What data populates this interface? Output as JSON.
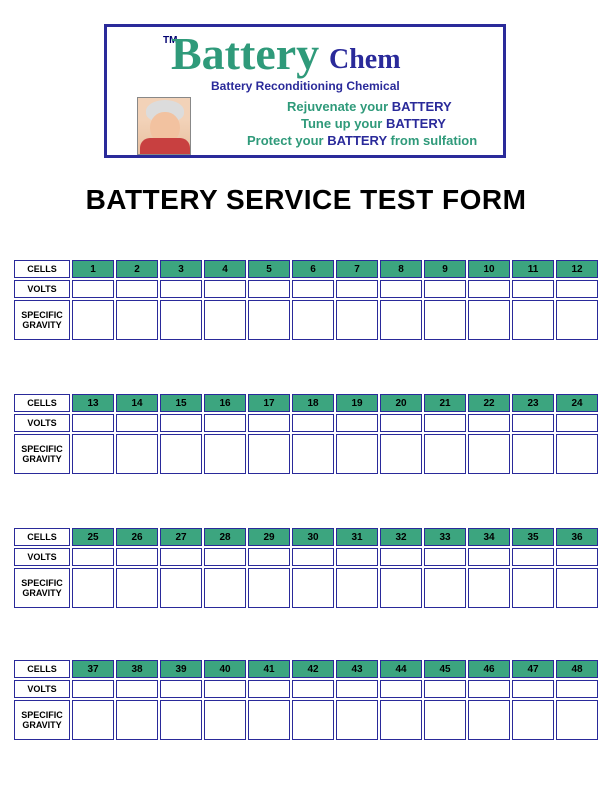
{
  "header": {
    "tm": "TM",
    "brand_main": "Battery",
    "brand_sub": "Chem",
    "subtitle": "Battery Reconditioning Chemical",
    "tag1_a": "Rejuvenate your ",
    "tag1_b": "BATTERY",
    "tag2_a": "Tune up your ",
    "tag2_b": "BATTERY",
    "tag3_a": "Protect your ",
    "tag3_b": "BATTERY",
    "tag3_c": " from sulfation"
  },
  "title": "BATTERY SERVICE TEST FORM",
  "row_labels": {
    "cells": "CELLS",
    "volts": "VOLTS",
    "sg_line1": "SPECIFIC",
    "sg_line2": "GRAVITY"
  },
  "tables": [
    {
      "cells": [
        "1",
        "2",
        "3",
        "4",
        "5",
        "6",
        "7",
        "8",
        "9",
        "10",
        "11",
        "12"
      ]
    },
    {
      "cells": [
        "13",
        "14",
        "15",
        "16",
        "17",
        "18",
        "19",
        "20",
        "21",
        "22",
        "23",
        "24"
      ]
    },
    {
      "cells": [
        "25",
        "26",
        "27",
        "28",
        "29",
        "30",
        "31",
        "32",
        "33",
        "34",
        "35",
        "36"
      ]
    },
    {
      "cells": [
        "37",
        "38",
        "39",
        "40",
        "41",
        "42",
        "43",
        "44",
        "45",
        "46",
        "47",
        "48"
      ]
    }
  ],
  "colors": {
    "header_border": "#2a2a9a",
    "brand_green": "#2f9a7a",
    "brand_blue": "#2a2a9a",
    "table_header_bg": "#3ca57f",
    "cell_border": "#2a2a9a"
  }
}
